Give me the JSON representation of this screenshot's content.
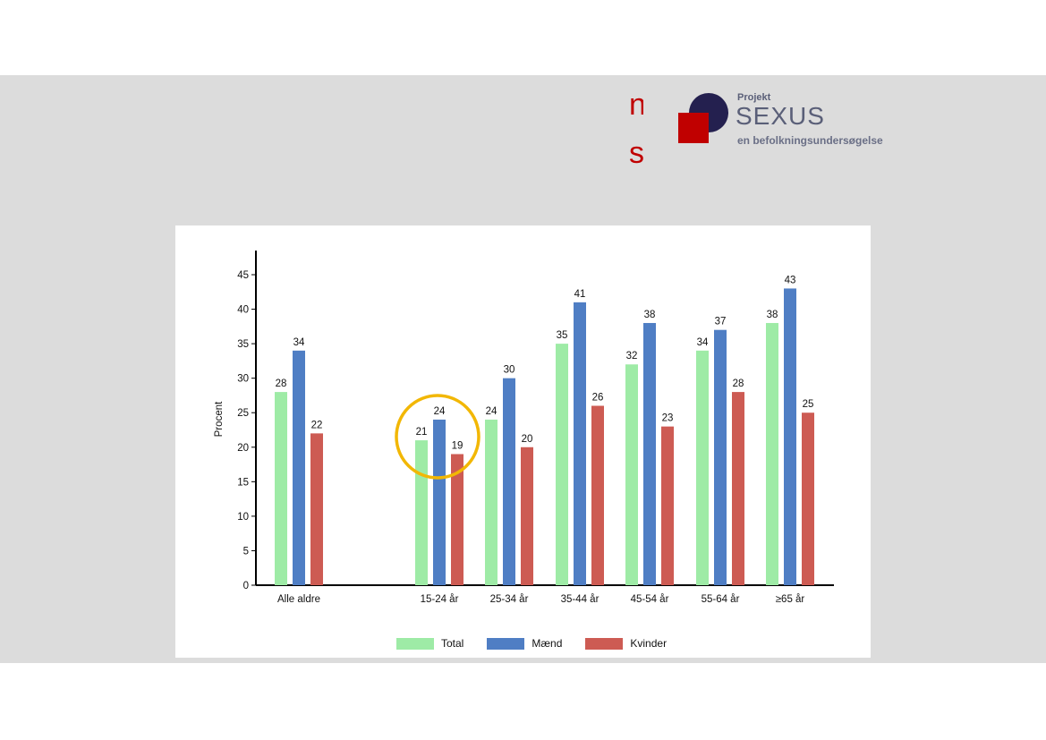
{
  "slide": {
    "title_fragment_line1": "n",
    "title_fragment_line2": "s"
  },
  "logo": {
    "kicker": "Projekt",
    "name": "SEXUS",
    "subtitle": "en befolkningsundersøgelse"
  },
  "chart_data": {
    "type": "bar",
    "ylabel": "Procent",
    "xlabel": "",
    "ylim": [
      0,
      45
    ],
    "yticks": [
      0,
      5,
      10,
      15,
      20,
      25,
      30,
      35,
      40,
      45
    ],
    "grid": false,
    "legend_position": "bottom",
    "categories": [
      "Alle aldre",
      "15-24 år",
      "25-34 år",
      "35-44 år",
      "45-54 år",
      "55-64 år",
      "≥65 år"
    ],
    "series": [
      {
        "name": "Total",
        "color": "#9eeba6",
        "values": [
          28,
          21,
          24,
          35,
          32,
          34,
          38
        ]
      },
      {
        "name": "Mænd",
        "color": "#4f7ec4",
        "values": [
          34,
          24,
          30,
          41,
          38,
          37,
          43
        ]
      },
      {
        "name": "Kvinder",
        "color": "#cd5b53",
        "values": [
          22,
          19,
          20,
          26,
          23,
          28,
          25
        ]
      }
    ],
    "annotation": {
      "type": "circle",
      "category": "15-24 år",
      "color": "#f2b705"
    }
  }
}
